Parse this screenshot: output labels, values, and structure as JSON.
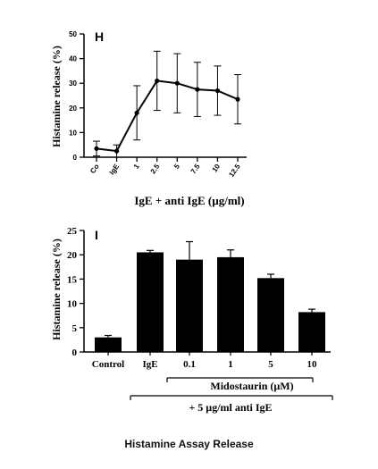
{
  "caption": "Histamine Assay Release",
  "chart_data": [
    {
      "type": "line",
      "panel_label": "H",
      "ylabel": "Histamine release (%)",
      "xlabel": "IgE + anti IgE (µg/ml)",
      "ylim": [
        0,
        50
      ],
      "yticks": [
        0,
        10,
        20,
        30,
        40,
        50
      ],
      "categories": [
        "Co",
        "IgE",
        "1",
        "2.5",
        "5",
        "7.5",
        "10",
        "12.5"
      ],
      "values": [
        3.5,
        2.5,
        18,
        31,
        30,
        27.5,
        27,
        23.5
      ],
      "errors": [
        3,
        2.5,
        11,
        12,
        12,
        11,
        10,
        10
      ]
    },
    {
      "type": "bar",
      "panel_label": "I",
      "ylabel": "Histamine release (%)",
      "ylim": [
        0,
        25
      ],
      "yticks": [
        0,
        5,
        10,
        15,
        20,
        25
      ],
      "categories": [
        "Control",
        "IgE",
        "0.1",
        "1",
        "5",
        "10"
      ],
      "values": [
        3,
        20.5,
        19,
        19.5,
        15.2,
        8.2
      ],
      "errors": [
        0.4,
        0.4,
        3.7,
        1.5,
        0.8,
        0.6
      ],
      "bracket_inner_label": "Midostaurin (µM)",
      "bracket_outer_label": "+ 5 µg/ml anti IgE"
    }
  ]
}
